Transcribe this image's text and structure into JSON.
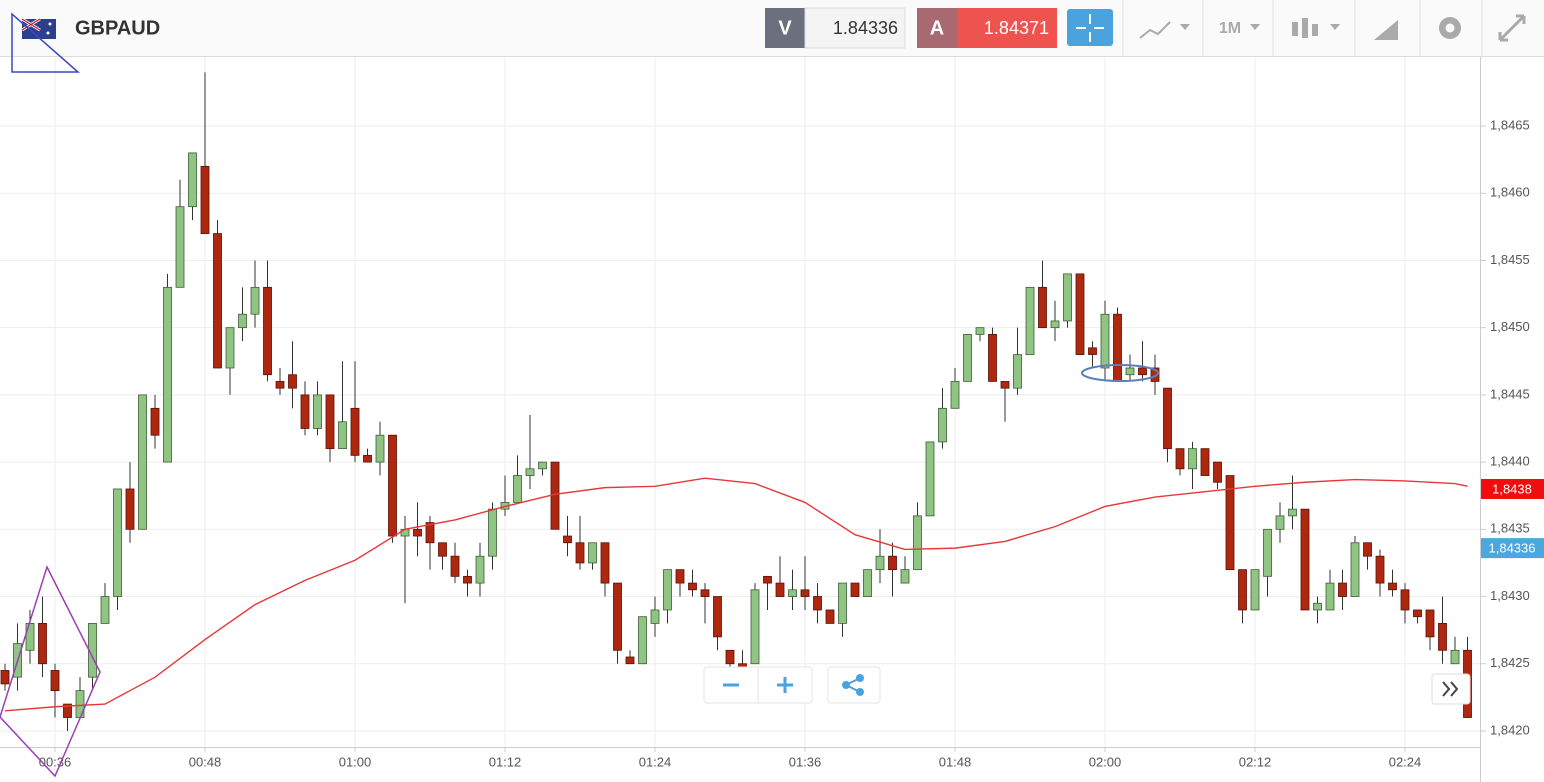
{
  "header": {
    "symbol": "GBPAUD",
    "bid_label": "V",
    "bid": "1.84336",
    "ask_label": "A",
    "ask": "1.84371",
    "timeframe": "1M"
  },
  "chart_data": {
    "type": "candlestick",
    "up_color": "#8fc483",
    "down_color": "#b0270f",
    "grid": true,
    "x": [
      "00:32",
      "00:33",
      "00:34",
      "00:35",
      "00:36",
      "00:37",
      "00:38",
      "00:39",
      "00:40",
      "00:41",
      "00:42",
      "00:43",
      "00:44",
      "00:45",
      "00:46",
      "00:47",
      "00:48",
      "00:49",
      "00:50",
      "00:51",
      "00:52",
      "00:53",
      "00:54",
      "00:55",
      "00:56",
      "00:57",
      "00:58",
      "00:59",
      "01:00",
      "01:01",
      "01:02",
      "01:03",
      "01:04",
      "01:05",
      "01:06",
      "01:07",
      "01:08",
      "01:09",
      "01:10",
      "01:11",
      "01:12",
      "01:13",
      "01:14",
      "01:15",
      "01:16",
      "01:17",
      "01:18",
      "01:19",
      "01:20",
      "01:21",
      "01:22",
      "01:23",
      "01:24",
      "01:25",
      "01:26",
      "01:27",
      "01:28",
      "01:29",
      "01:30",
      "01:31",
      "01:32",
      "01:33",
      "01:34",
      "01:35",
      "01:36",
      "01:37",
      "01:38",
      "01:39",
      "01:40",
      "01:41",
      "01:42",
      "01:43",
      "01:44",
      "01:45",
      "01:46",
      "01:47",
      "01:48",
      "01:49",
      "01:50",
      "01:51",
      "01:52",
      "01:53",
      "01:54",
      "01:55",
      "01:56",
      "01:57",
      "01:58",
      "01:59",
      "02:00",
      "02:01",
      "02:02",
      "02:03",
      "02:04",
      "02:05",
      "02:06",
      "02:07",
      "02:08",
      "02:09",
      "02:10",
      "02:11",
      "02:12",
      "02:13",
      "02:14",
      "02:15",
      "02:16",
      "02:17",
      "02:18",
      "02:19",
      "02:20",
      "02:21",
      "02:22",
      "02:23",
      "02:24",
      "02:25",
      "02:26",
      "02:27",
      "02:28",
      "02:29"
    ],
    "open": [
      1.84245,
      1.8424,
      1.8426,
      1.8428,
      1.84245,
      1.8422,
      1.8421,
      1.8424,
      1.8428,
      1.843,
      1.8438,
      1.8435,
      1.8444,
      1.844,
      1.8453,
      1.8459,
      1.8462,
      1.8457,
      1.8447,
      1.845,
      1.8451,
      1.8453,
      1.8446,
      1.84465,
      1.8445,
      1.84425,
      1.8445,
      1.8441,
      1.8444,
      1.84405,
      1.844,
      1.8442,
      1.84345,
      1.8435,
      1.84355,
      1.8434,
      1.8433,
      1.84315,
      1.8431,
      1.8433,
      1.84365,
      1.8437,
      1.8439,
      1.84395,
      1.844,
      1.84345,
      1.8434,
      1.84325,
      1.8434,
      1.8431,
      1.84255,
      1.8425,
      1.8428,
      1.8429,
      1.8432,
      1.8431,
      1.84305,
      1.843,
      1.8426,
      1.8425,
      1.8425,
      1.84315,
      1.8431,
      1.843,
      1.84305,
      1.843,
      1.8429,
      1.8428,
      1.8431,
      1.843,
      1.8432,
      1.8433,
      1.8431,
      1.8432,
      1.8436,
      1.84415,
      1.8444,
      1.8446,
      1.84495,
      1.84495,
      1.8446,
      1.84455,
      1.8448,
      1.8453,
      1.845,
      1.84505,
      1.8454,
      1.84485,
      1.8447,
      1.8451,
      1.84465,
      1.8447,
      1.8447,
      1.84455,
      1.8441,
      1.84395,
      1.8441,
      1.844,
      1.8439,
      1.8432,
      1.8429,
      1.84315,
      1.8435,
      1.8436,
      1.84365,
      1.8429,
      1.8429,
      1.8431,
      1.843,
      1.8434,
      1.8433,
      1.8431,
      1.84305,
      1.8429,
      1.8429,
      1.8428,
      1.8425,
      1.8426
    ],
    "high": [
      1.8425,
      1.8428,
      1.8429,
      1.843,
      1.8425,
      1.8422,
      1.8424,
      1.8428,
      1.8431,
      1.8438,
      1.844,
      1.8445,
      1.8445,
      1.8454,
      1.8461,
      1.8463,
      1.8469,
      1.8458,
      1.845,
      1.8453,
      1.8455,
      1.8455,
      1.8447,
      1.8449,
      1.8446,
      1.8446,
      1.8445,
      1.84475,
      1.84475,
      1.8441,
      1.8443,
      1.8442,
      1.8436,
      1.8437,
      1.8436,
      1.8434,
      1.8434,
      1.8432,
      1.8434,
      1.8437,
      1.8439,
      1.84405,
      1.84435,
      1.844,
      1.844,
      1.8436,
      1.8436,
      1.8434,
      1.8434,
      1.8431,
      1.8426,
      1.8428,
      1.843,
      1.8432,
      1.8432,
      1.8432,
      1.8431,
      1.843,
      1.8426,
      1.8426,
      1.8431,
      1.84315,
      1.8433,
      1.8432,
      1.8433,
      1.8431,
      1.8429,
      1.8431,
      1.8431,
      1.8432,
      1.8435,
      1.8434,
      1.8433,
      1.8437,
      1.84415,
      1.84455,
      1.8447,
      1.84495,
      1.845,
      1.845,
      1.8446,
      1.845,
      1.8453,
      1.8455,
      1.8452,
      1.8454,
      1.8454,
      1.8449,
      1.8452,
      1.84515,
      1.8448,
      1.8449,
      1.8448,
      1.84455,
      1.8441,
      1.84415,
      1.8441,
      1.844,
      1.8439,
      1.8432,
      1.8432,
      1.8435,
      1.8437,
      1.8439,
      1.84365,
      1.843,
      1.8432,
      1.8432,
      1.84345,
      1.8434,
      1.84335,
      1.8432,
      1.8431,
      1.8429,
      1.8429,
      1.843,
      1.8427,
      1.8427
    ],
    "low": [
      1.8423,
      1.8423,
      1.8425,
      1.8424,
      1.8421,
      1.842,
      1.8421,
      1.8423,
      1.8428,
      1.8429,
      1.8434,
      1.8435,
      1.8441,
      1.844,
      1.8453,
      1.8458,
      1.8457,
      1.8447,
      1.8445,
      1.8449,
      1.845,
      1.8446,
      1.8445,
      1.8444,
      1.8442,
      1.8442,
      1.844,
      1.8441,
      1.844,
      1.844,
      1.8439,
      1.8434,
      1.84295,
      1.8433,
      1.8432,
      1.8432,
      1.8431,
      1.843,
      1.843,
      1.8432,
      1.8436,
      1.8437,
      1.8438,
      1.8439,
      1.8435,
      1.8433,
      1.8432,
      1.8432,
      1.843,
      1.8425,
      1.8425,
      1.8425,
      1.8427,
      1.8428,
      1.843,
      1.843,
      1.8428,
      1.8426,
      1.84245,
      1.8424,
      1.8425,
      1.8429,
      1.843,
      1.8429,
      1.8429,
      1.8428,
      1.8428,
      1.8427,
      1.843,
      1.843,
      1.8431,
      1.843,
      1.8431,
      1.8432,
      1.8436,
      1.8441,
      1.8444,
      1.8446,
      1.8449,
      1.8446,
      1.8443,
      1.8445,
      1.8448,
      1.845,
      1.8449,
      1.845,
      1.8448,
      1.8447,
      1.8446,
      1.8446,
      1.8446,
      1.8446,
      1.8445,
      1.844,
      1.8439,
      1.8438,
      1.8439,
      1.8438,
      1.8432,
      1.8428,
      1.8429,
      1.843,
      1.8434,
      1.8435,
      1.8429,
      1.8428,
      1.8429,
      1.8429,
      1.843,
      1.8432,
      1.843,
      1.843,
      1.8428,
      1.8428,
      1.8426,
      1.8425,
      1.8425,
      1.8421
    ],
    "close": [
      1.84235,
      1.84265,
      1.8428,
      1.8425,
      1.8423,
      1.8421,
      1.8423,
      1.8428,
      1.843,
      1.8438,
      1.8435,
      1.8445,
      1.8442,
      1.8453,
      1.8459,
      1.8463,
      1.8457,
      1.8447,
      1.845,
      1.8451,
      1.8453,
      1.84465,
      1.84455,
      1.84455,
      1.84425,
      1.8445,
      1.8441,
      1.8443,
      1.84405,
      1.844,
      1.8442,
      1.84345,
      1.8435,
      1.84345,
      1.8434,
      1.8433,
      1.84315,
      1.8431,
      1.8433,
      1.84365,
      1.8437,
      1.8439,
      1.84395,
      1.844,
      1.8435,
      1.8434,
      1.84325,
      1.8434,
      1.8431,
      1.8426,
      1.8425,
      1.84285,
      1.8429,
      1.8432,
      1.8431,
      1.84305,
      1.843,
      1.8427,
      1.8425,
      1.84245,
      1.84305,
      1.8431,
      1.843,
      1.84305,
      1.843,
      1.8429,
      1.8428,
      1.8431,
      1.843,
      1.8432,
      1.8433,
      1.8432,
      1.8432,
      1.8436,
      1.84415,
      1.8444,
      1.8446,
      1.84495,
      1.845,
      1.8446,
      1.84455,
      1.8448,
      1.8453,
      1.845,
      1.84505,
      1.8454,
      1.8448,
      1.8448,
      1.8451,
      1.8446,
      1.8447,
      1.84465,
      1.8446,
      1.8441,
      1.84395,
      1.8441,
      1.8439,
      1.84385,
      1.8432,
      1.8429,
      1.8432,
      1.8435,
      1.8436,
      1.84365,
      1.8429,
      1.84295,
      1.8431,
      1.843,
      1.8434,
      1.8433,
      1.8431,
      1.84305,
      1.8429,
      1.84285,
      1.8427,
      1.8426,
      1.8426,
      1.8421
    ],
    "overlay": {
      "type": "line",
      "color": "#e8373a",
      "x": [
        "00:32",
        "00:36",
        "00:40",
        "00:44",
        "00:48",
        "00:52",
        "00:56",
        "01:00",
        "01:04",
        "01:08",
        "01:12",
        "01:16",
        "01:20",
        "01:24",
        "01:28",
        "01:32",
        "01:36",
        "01:40",
        "01:44",
        "01:48",
        "01:52",
        "01:56",
        "02:00",
        "02:04",
        "02:08",
        "02:12",
        "02:16",
        "02:20",
        "02:24",
        "02:28",
        "02:29"
      ],
      "values": [
        1.84215,
        1.84218,
        1.8422,
        1.8424,
        1.84268,
        1.84294,
        1.84312,
        1.84327,
        1.8435,
        1.84357,
        1.84367,
        1.84376,
        1.84381,
        1.84382,
        1.84388,
        1.84384,
        1.8437,
        1.84346,
        1.84335,
        1.84336,
        1.84341,
        1.84352,
        1.84367,
        1.84374,
        1.84378,
        1.84382,
        1.84385,
        1.84387,
        1.84386,
        1.84384,
        1.84382
      ]
    },
    "xlim": [
      "00:31",
      "02:30"
    ],
    "xticks": [
      "00:36",
      "00:48",
      "01:00",
      "01:12",
      "01:24",
      "01:36",
      "01:48",
      "02:00",
      "02:12",
      "02:24"
    ],
    "ylim": [
      1.8419,
      1.847
    ],
    "yticks": [
      {
        "value": 1.842,
        "label": "1,8420"
      },
      {
        "value": 1.8425,
        "label": "1,8425"
      },
      {
        "value": 1.843,
        "label": "1,8430"
      },
      {
        "value": 1.8435,
        "label": "1,8435"
      },
      {
        "value": 1.844,
        "label": "1,8440"
      },
      {
        "value": 1.8445,
        "label": "1,8445"
      },
      {
        "value": 1.845,
        "label": "1,8450"
      },
      {
        "value": 1.8455,
        "label": "1,8455"
      },
      {
        "value": 1.846,
        "label": "1,8460"
      },
      {
        "value": 1.8465,
        "label": "1,8465"
      }
    ],
    "price_tags": [
      {
        "value": 1.8438,
        "label": "1,8438",
        "color": "#f00d0d"
      },
      {
        "value": 1.84336,
        "label": "1,84336",
        "color": "#4aa8de"
      }
    ]
  }
}
